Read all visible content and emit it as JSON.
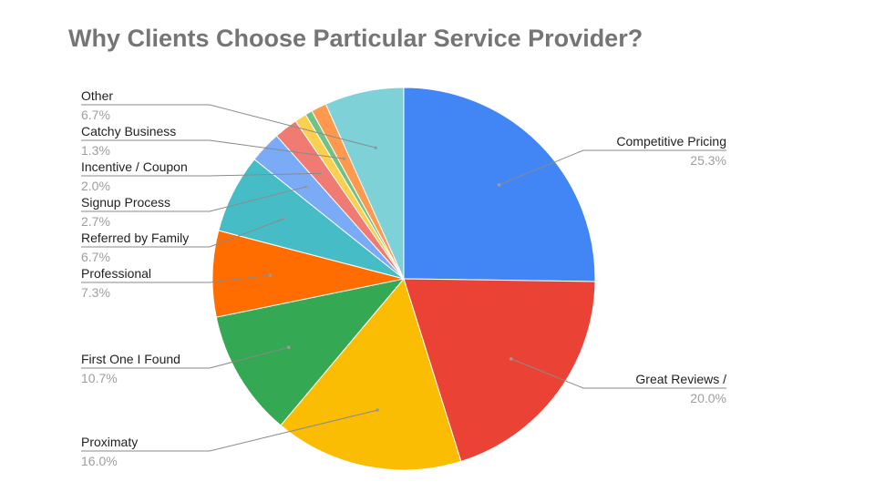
{
  "chart_data": {
    "type": "pie",
    "title": "Why Clients Choose Particular Service Provider?",
    "slices": [
      {
        "label": "Competitive Pricing",
        "value": 25.3,
        "value_label": "25.3%",
        "color": "#4285F4"
      },
      {
        "label": "Great Reviews /",
        "value": 20.0,
        "value_label": "20.0%",
        "color": "#EA4335"
      },
      {
        "label": "Proximaty",
        "value": 16.0,
        "value_label": "16.0%",
        "color": "#FBBC04"
      },
      {
        "label": "First One I Found",
        "value": 10.7,
        "value_label": "10.7%",
        "color": "#34A853"
      },
      {
        "label": "Professional",
        "value": 7.3,
        "value_label": "7.3%",
        "color": "#FF6D01"
      },
      {
        "label": "Referred by Family",
        "value": 6.7,
        "value_label": "6.7%",
        "color": "#46BDC6"
      },
      {
        "label": "Signup Process",
        "value": 2.7,
        "value_label": "2.7%",
        "color": "#7BAAF7"
      },
      {
        "label": "Incentive / Coupon",
        "value": 2.0,
        "value_label": "2.0%",
        "color": "#F07B72"
      },
      {
        "label": "",
        "value": 1.0,
        "value_label": "",
        "color": "#FCD04F"
      },
      {
        "label": "",
        "value": 0.6,
        "value_label": "",
        "color": "#71C287"
      },
      {
        "label": "Catchy Business",
        "value": 1.3,
        "value_label": "1.3%",
        "color": "#FF994D"
      },
      {
        "label": "Other",
        "value": 6.7,
        "value_label": "6.7%",
        "color": "#7ED1D7"
      }
    ],
    "start_angle_deg": 0,
    "direction": "clockwise",
    "legend": "none",
    "labels": "outside with leader lines"
  }
}
